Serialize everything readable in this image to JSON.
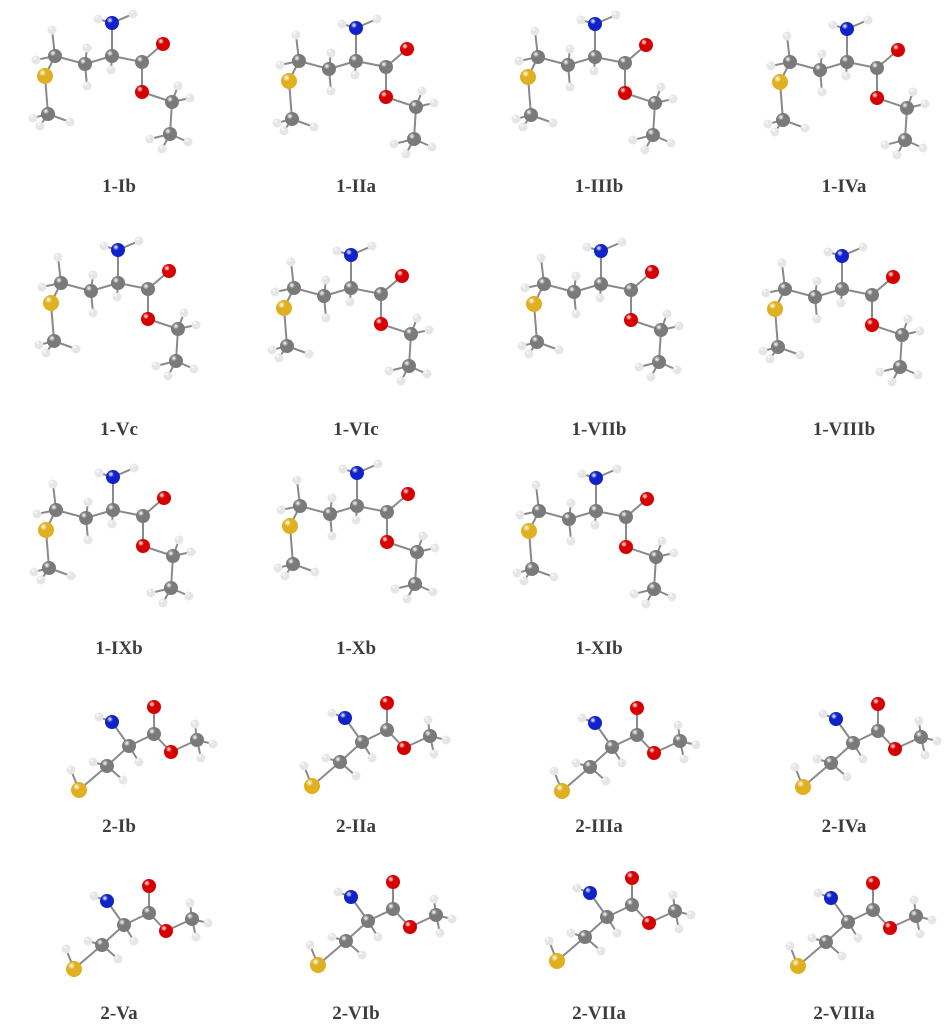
{
  "atom_colors": {
    "C": "#7a7a7a",
    "H": "#e6e6e6",
    "N": "#1022c8",
    "O": "#d60000",
    "S": "#e0b020"
  },
  "rows": [
    {
      "labels": [
        "1-Ib",
        "1-IIa",
        "1-IIIb",
        "1-IVa"
      ],
      "molecule": "ethyl methioninate"
    },
    {
      "labels": [
        "1-Vc",
        "1-VIc",
        "1-VIIb",
        "1-VIIIb"
      ],
      "molecule": "ethyl methioninate"
    },
    {
      "labels": [
        "1-IXb",
        "1-Xb",
        "1-XIb"
      ],
      "molecule": "ethyl methioninate"
    },
    {
      "labels": [
        "2-Ib",
        "2-IIa",
        "2-IIIa",
        "2-IVa"
      ],
      "molecule": "methyl cysteinate"
    },
    {
      "labels": [
        "2-Va",
        "2-VIb",
        "2-VIIa",
        "2-VIIIa"
      ],
      "molecule": "methyl cysteinate"
    }
  ]
}
